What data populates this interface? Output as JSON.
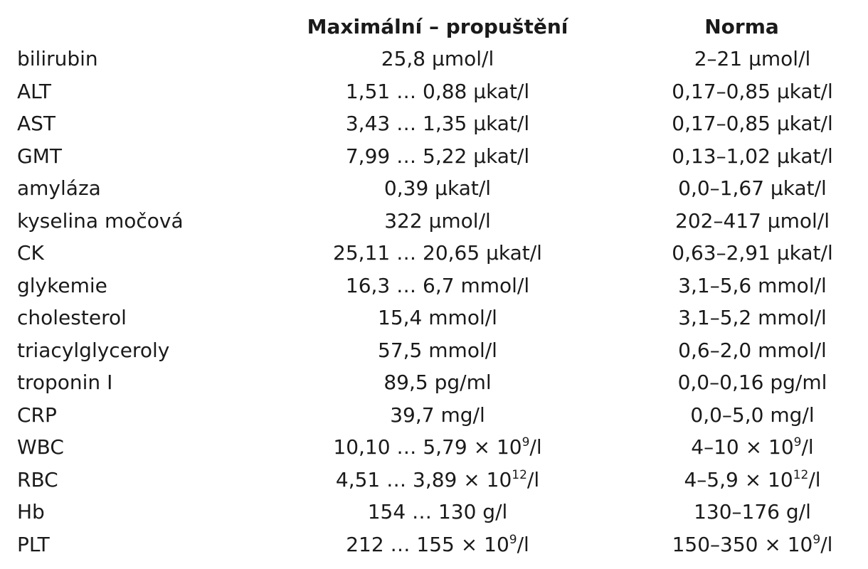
{
  "table": {
    "headers": {
      "parameter": "",
      "maximal": "Maximální – propuštění",
      "norm": "Norma"
    },
    "rows": [
      {
        "parameter": "bilirubin",
        "maximal": "25,8 µmol/l",
        "norm": "2–21 µmol/l"
      },
      {
        "parameter": "ALT",
        "maximal": "1,51 … 0,88 µkat/l",
        "norm": "0,17–0,85 µkat/l"
      },
      {
        "parameter": "AST",
        "maximal": "3,43 … 1,35 µkat/l",
        "norm": "0,17–0,85 µkat/l"
      },
      {
        "parameter": "GMT",
        "maximal": "7,99 … 5,22 µkat/l",
        "norm": "0,13–1,02 µkat/l"
      },
      {
        "parameter": "amyláza",
        "maximal": "0,39 µkat/l",
        "norm": "0,0–1,67 µkat/l"
      },
      {
        "parameter": "kyselina močová",
        "maximal": "322 µmol/l",
        "norm": "202–417 µmol/l"
      },
      {
        "parameter": "CK",
        "maximal": "25,11 … 20,65 µkat/l",
        "norm": "0,63–2,91 µkat/l"
      },
      {
        "parameter": "glykemie",
        "maximal": "16,3 … 6,7 mmol/l",
        "norm": "3,1–5,6 mmol/l"
      },
      {
        "parameter": "cholesterol",
        "maximal": "15,4 mmol/l",
        "norm": "3,1–5,2 mmol/l"
      },
      {
        "parameter": "triacylglyceroly",
        "maximal": "57,5 mmol/l",
        "norm": "0,6–2,0 mmol/l"
      },
      {
        "parameter": "troponin I",
        "maximal": "89,5 pg/ml",
        "norm": "0,0–0,16 pg/ml"
      },
      {
        "parameter": "CRP",
        "maximal": "39,7 mg/l",
        "norm": "0,0–5,0 mg/l"
      },
      {
        "parameter": "WBC",
        "maximal": {
          "pre": "10,10 … 5,79 × 10",
          "sup": "9",
          "post": "/l"
        },
        "norm": {
          "pre": "4–10 × 10",
          "sup": "9",
          "post": "/l"
        }
      },
      {
        "parameter": "RBC",
        "maximal": {
          "pre": "4,51 … 3,89 × 10",
          "sup": "12",
          "post": "/l"
        },
        "norm": {
          "pre": "4–5,9 × 10",
          "sup": "12",
          "post": "/l"
        }
      },
      {
        "parameter": "Hb",
        "maximal": "154 … 130 g/l",
        "norm": "130–176 g/l"
      },
      {
        "parameter": "PLT",
        "maximal": {
          "pre": "212 … 155 × 10",
          "sup": "9",
          "post": "/l"
        },
        "norm": {
          "pre": "150–350 × 10",
          "sup": "9",
          "post": "/l"
        }
      }
    ]
  }
}
